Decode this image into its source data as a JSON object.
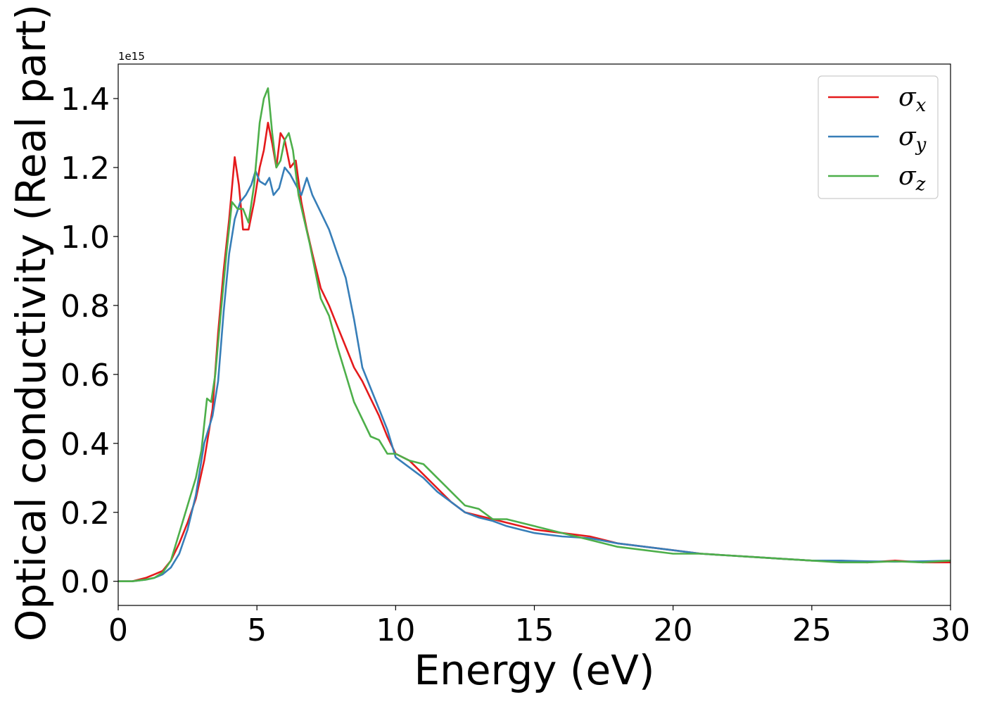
{
  "chart_data": {
    "type": "line",
    "title": "",
    "xlabel": "Energy (eV)",
    "ylabel": "Optical conductivity (Real part)",
    "y_offset_text": "1e15",
    "y_scale": 1000000000000000.0,
    "xlim": [
      0,
      30
    ],
    "ylim": [
      -0.07,
      1.5
    ],
    "x_ticks": [
      0,
      5,
      10,
      15,
      20,
      25,
      30
    ],
    "x_tick_labels": [
      "0",
      "5",
      "10",
      "15",
      "20",
      "25",
      "30"
    ],
    "y_ticks": [
      0.0,
      0.2,
      0.4,
      0.6,
      0.8,
      1.0,
      1.2,
      1.4
    ],
    "y_tick_labels": [
      "0.0",
      "0.2",
      "0.4",
      "0.6",
      "0.8",
      "1.0",
      "1.2",
      "1.4"
    ],
    "grid": false,
    "legend_position": "top-right",
    "series": [
      {
        "name": "σx",
        "symbol": "σ",
        "subscript": "x",
        "color": "#e41a1c",
        "x": [
          0,
          0.5,
          1.0,
          1.3,
          1.6,
          1.9,
          2.2,
          2.5,
          2.8,
          3.1,
          3.4,
          3.6,
          3.8,
          4.0,
          4.2,
          4.35,
          4.5,
          4.7,
          4.9,
          5.1,
          5.25,
          5.4,
          5.55,
          5.7,
          5.85,
          6.0,
          6.2,
          6.4,
          6.6,
          6.8,
          7.0,
          7.3,
          7.6,
          7.9,
          8.2,
          8.5,
          8.8,
          9.1,
          9.4,
          9.7,
          10.0,
          10.5,
          11.0,
          11.5,
          12.0,
          12.5,
          13.0,
          13.5,
          14.0,
          14.5,
          15.0,
          15.5,
          16.0,
          17.0,
          18.0,
          19.0,
          20.0,
          21.0,
          22.0,
          23.0,
          24.0,
          25.0,
          26.0,
          27.0,
          28.0,
          29.0,
          30.0
        ],
        "values": [
          0.0,
          0.0,
          0.01,
          0.02,
          0.03,
          0.06,
          0.11,
          0.17,
          0.24,
          0.35,
          0.5,
          0.72,
          0.9,
          1.05,
          1.23,
          1.15,
          1.02,
          1.02,
          1.1,
          1.2,
          1.25,
          1.33,
          1.27,
          1.2,
          1.3,
          1.28,
          1.2,
          1.22,
          1.1,
          1.02,
          0.95,
          0.85,
          0.8,
          0.74,
          0.68,
          0.62,
          0.58,
          0.53,
          0.48,
          0.42,
          0.37,
          0.35,
          0.31,
          0.27,
          0.23,
          0.2,
          0.19,
          0.18,
          0.17,
          0.16,
          0.15,
          0.145,
          0.14,
          0.13,
          0.11,
          0.1,
          0.09,
          0.08,
          0.075,
          0.07,
          0.065,
          0.06,
          0.06,
          0.055,
          0.06,
          0.055,
          0.055
        ]
      },
      {
        "name": "σy",
        "symbol": "σ",
        "subscript": "y",
        "color": "#377eb8",
        "x": [
          0,
          0.5,
          1.0,
          1.3,
          1.6,
          1.9,
          2.2,
          2.5,
          2.8,
          3.1,
          3.4,
          3.6,
          3.8,
          4.0,
          4.2,
          4.4,
          4.6,
          4.8,
          4.95,
          5.1,
          5.3,
          5.45,
          5.6,
          5.8,
          6.0,
          6.2,
          6.4,
          6.6,
          6.8,
          7.0,
          7.3,
          7.6,
          7.9,
          8.2,
          8.5,
          8.8,
          9.1,
          9.4,
          9.7,
          10.0,
          10.5,
          11.0,
          11.5,
          12.0,
          12.5,
          13.0,
          13.5,
          14.0,
          14.5,
          15.0,
          15.5,
          16.0,
          17.0,
          18.0,
          19.0,
          20.0,
          21.0,
          22.0,
          23.0,
          24.0,
          25.0,
          26.0,
          27.0,
          28.0,
          29.0,
          30.0
        ],
        "values": [
          0.0,
          0.0,
          0.005,
          0.01,
          0.02,
          0.04,
          0.08,
          0.15,
          0.25,
          0.4,
          0.48,
          0.58,
          0.78,
          0.95,
          1.05,
          1.1,
          1.12,
          1.15,
          1.19,
          1.16,
          1.15,
          1.17,
          1.12,
          1.14,
          1.2,
          1.18,
          1.15,
          1.12,
          1.17,
          1.12,
          1.07,
          1.02,
          0.95,
          0.88,
          0.76,
          0.62,
          0.56,
          0.5,
          0.44,
          0.36,
          0.33,
          0.3,
          0.26,
          0.23,
          0.2,
          0.185,
          0.175,
          0.16,
          0.15,
          0.14,
          0.135,
          0.13,
          0.125,
          0.11,
          0.1,
          0.09,
          0.08,
          0.075,
          0.07,
          0.065,
          0.06,
          0.06,
          0.058,
          0.057,
          0.058,
          0.06
        ]
      },
      {
        "name": "σz",
        "symbol": "σ",
        "subscript": "z",
        "color": "#4daf4a",
        "x": [
          0,
          0.5,
          1.0,
          1.3,
          1.6,
          1.9,
          2.2,
          2.5,
          2.8,
          3.0,
          3.2,
          3.35,
          3.5,
          3.7,
          3.9,
          4.1,
          4.3,
          4.5,
          4.7,
          4.9,
          5.1,
          5.25,
          5.4,
          5.55,
          5.7,
          5.85,
          6.0,
          6.15,
          6.3,
          6.5,
          6.7,
          6.9,
          7.1,
          7.3,
          7.6,
          7.9,
          8.2,
          8.5,
          8.8,
          9.1,
          9.4,
          9.7,
          10.0,
          10.5,
          11.0,
          11.5,
          12.0,
          12.5,
          13.0,
          13.5,
          14.0,
          14.5,
          15.0,
          15.5,
          16.0,
          17.0,
          18.0,
          19.0,
          20.0,
          21.0,
          22.0,
          23.0,
          24.0,
          25.0,
          26.0,
          27.0,
          28.0,
          29.0,
          30.0
        ],
        "values": [
          0.0,
          0.0,
          0.005,
          0.01,
          0.025,
          0.06,
          0.14,
          0.22,
          0.3,
          0.38,
          0.53,
          0.52,
          0.6,
          0.78,
          0.95,
          1.1,
          1.08,
          1.08,
          1.04,
          1.15,
          1.33,
          1.4,
          1.43,
          1.3,
          1.2,
          1.22,
          1.28,
          1.3,
          1.25,
          1.12,
          1.05,
          0.98,
          0.9,
          0.82,
          0.77,
          0.68,
          0.6,
          0.52,
          0.47,
          0.42,
          0.41,
          0.37,
          0.37,
          0.35,
          0.34,
          0.3,
          0.26,
          0.22,
          0.21,
          0.18,
          0.18,
          0.17,
          0.16,
          0.15,
          0.14,
          0.12,
          0.1,
          0.09,
          0.08,
          0.08,
          0.075,
          0.07,
          0.065,
          0.06,
          0.055,
          0.055,
          0.058,
          0.055,
          0.06
        ]
      }
    ]
  }
}
